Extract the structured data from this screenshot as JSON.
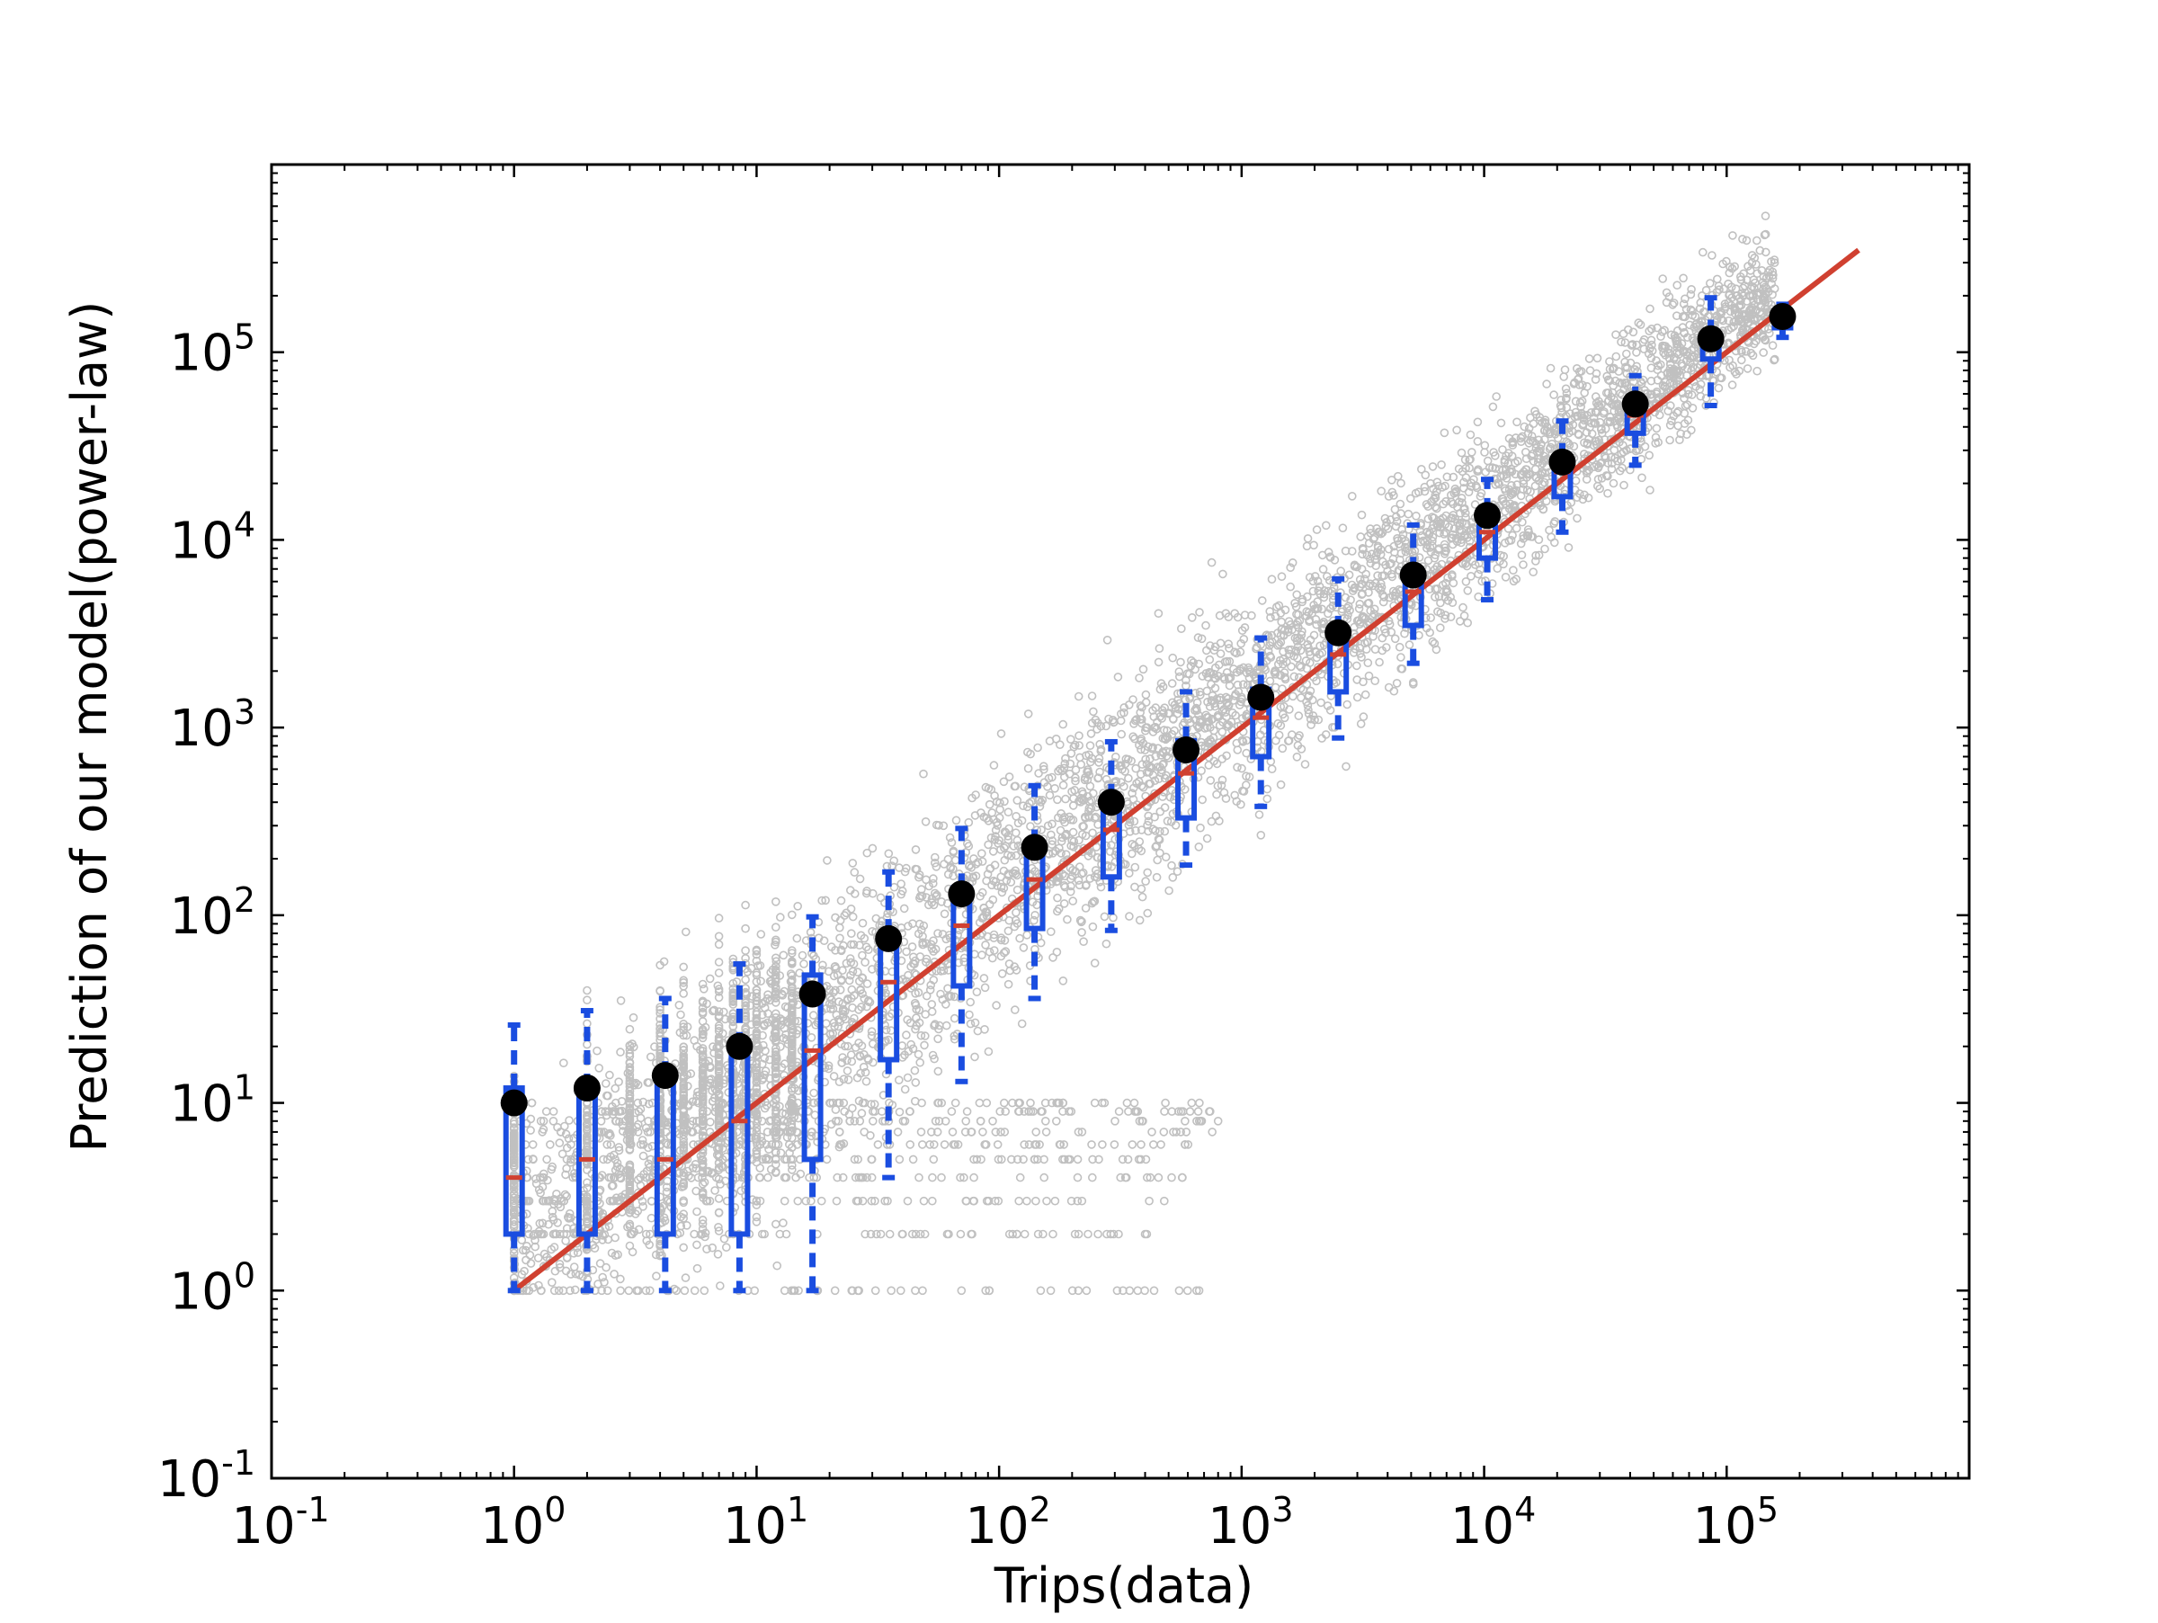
{
  "chart_data": {
    "type": "scatter",
    "title": "",
    "xlabel": "Trips(data)",
    "ylabel": "Prediction of our model(power-law)",
    "xscale": "log",
    "yscale": "log",
    "xlim": [
      0.1,
      1000000
    ],
    "ylim": [
      0.1,
      1000000
    ],
    "grid": false,
    "legend": "none",
    "x_ticks": [
      {
        "value": 0.1,
        "base": "10",
        "exp": "-1"
      },
      {
        "value": 1,
        "base": "10",
        "exp": "0"
      },
      {
        "value": 10,
        "base": "10",
        "exp": "1"
      },
      {
        "value": 100,
        "base": "10",
        "exp": "2"
      },
      {
        "value": 1000,
        "base": "10",
        "exp": "3"
      },
      {
        "value": 10000,
        "base": "10",
        "exp": "4"
      },
      {
        "value": 100000,
        "base": "10",
        "exp": "5"
      }
    ],
    "y_ticks": [
      {
        "value": 0.1,
        "base": "10",
        "exp": "-1"
      },
      {
        "value": 1,
        "base": "10",
        "exp": "0"
      },
      {
        "value": 10,
        "base": "10",
        "exp": "1"
      },
      {
        "value": 100,
        "base": "10",
        "exp": "2"
      },
      {
        "value": 1000,
        "base": "10",
        "exp": "3"
      },
      {
        "value": 10000,
        "base": "10",
        "exp": "4"
      },
      {
        "value": 100000,
        "base": "10",
        "exp": "5"
      }
    ],
    "colors": {
      "scatter": "#c0c0c0",
      "box": "#1a4de0",
      "median": "#d04030",
      "fit_line": "#d04030",
      "mean": "#000000"
    },
    "fit_line": {
      "x": [
        1,
        350000
      ],
      "y": [
        1,
        350000
      ]
    },
    "bins": [
      {
        "x": 1,
        "mean": 10,
        "whisker_low": 1,
        "q1": 2,
        "median": 4,
        "q3": 12,
        "whisker_high": 26
      },
      {
        "x": 2,
        "mean": 12,
        "whisker_low": 1,
        "q1": 2,
        "median": 5,
        "q3": 12,
        "whisker_high": 31
      },
      {
        "x": 4.2,
        "mean": 14,
        "whisker_low": 1,
        "q1": 2,
        "median": 5,
        "q3": 14,
        "whisker_high": 36
      },
      {
        "x": 8.5,
        "mean": 20,
        "whisker_low": 1,
        "q1": 2,
        "median": 8,
        "q3": 20,
        "whisker_high": 55
      },
      {
        "x": 17,
        "mean": 38,
        "whisker_low": 1,
        "q1": 5,
        "median": 19,
        "q3": 48,
        "whisker_high": 98
      },
      {
        "x": 35,
        "mean": 75,
        "whisker_low": 4,
        "q1": 17,
        "median": 44,
        "q3": 80,
        "whisker_high": 170
      },
      {
        "x": 70,
        "mean": 130,
        "whisker_low": 13,
        "q1": 42,
        "median": 88,
        "q3": 140,
        "whisker_high": 290
      },
      {
        "x": 140,
        "mean": 230,
        "whisker_low": 36,
        "q1": 85,
        "median": 155,
        "q3": 240,
        "whisker_high": 490
      },
      {
        "x": 290,
        "mean": 400,
        "whisker_low": 83,
        "q1": 160,
        "median": 285,
        "q3": 420,
        "whisker_high": 840
      },
      {
        "x": 590,
        "mean": 760,
        "whisker_low": 185,
        "q1": 330,
        "median": 570,
        "q3": 850,
        "whisker_high": 1550
      },
      {
        "x": 1200,
        "mean": 1450,
        "whisker_low": 380,
        "q1": 700,
        "median": 1130,
        "q3": 1600,
        "whisker_high": 3000
      },
      {
        "x": 2500,
        "mean": 3200,
        "whisker_low": 880,
        "q1": 1550,
        "median": 2450,
        "q3": 3300,
        "whisker_high": 6200
      },
      {
        "x": 5100,
        "mean": 6500,
        "whisker_low": 2200,
        "q1": 3500,
        "median": 5300,
        "q3": 6800,
        "whisker_high": 12000
      },
      {
        "x": 10300,
        "mean": 13500,
        "whisker_low": 4800,
        "q1": 8000,
        "median": 11000,
        "q3": 14000,
        "whisker_high": 21000
      },
      {
        "x": 21000,
        "mean": 26000,
        "whisker_low": 11000,
        "q1": 17000,
        "median": 23000,
        "q3": 27500,
        "whisker_high": 43000
      },
      {
        "x": 42000,
        "mean": 53000,
        "whisker_low": 25000,
        "q1": 37000,
        "median": 46000,
        "q3": 55000,
        "whisker_high": 75000
      },
      {
        "x": 86000,
        "mean": 118000,
        "whisker_low": 52000,
        "q1": 92000,
        "median": 112000,
        "q3": 125000,
        "whisker_high": 195000
      },
      {
        "x": 170000,
        "mean": 155000,
        "whisker_low": 120000,
        "q1": 135000,
        "median": 152000,
        "q3": 165000,
        "whisker_high": 180000
      }
    ],
    "scatter_floor_rows": [
      1,
      2,
      3,
      4,
      5,
      6,
      7,
      8,
      9,
      10
    ]
  }
}
